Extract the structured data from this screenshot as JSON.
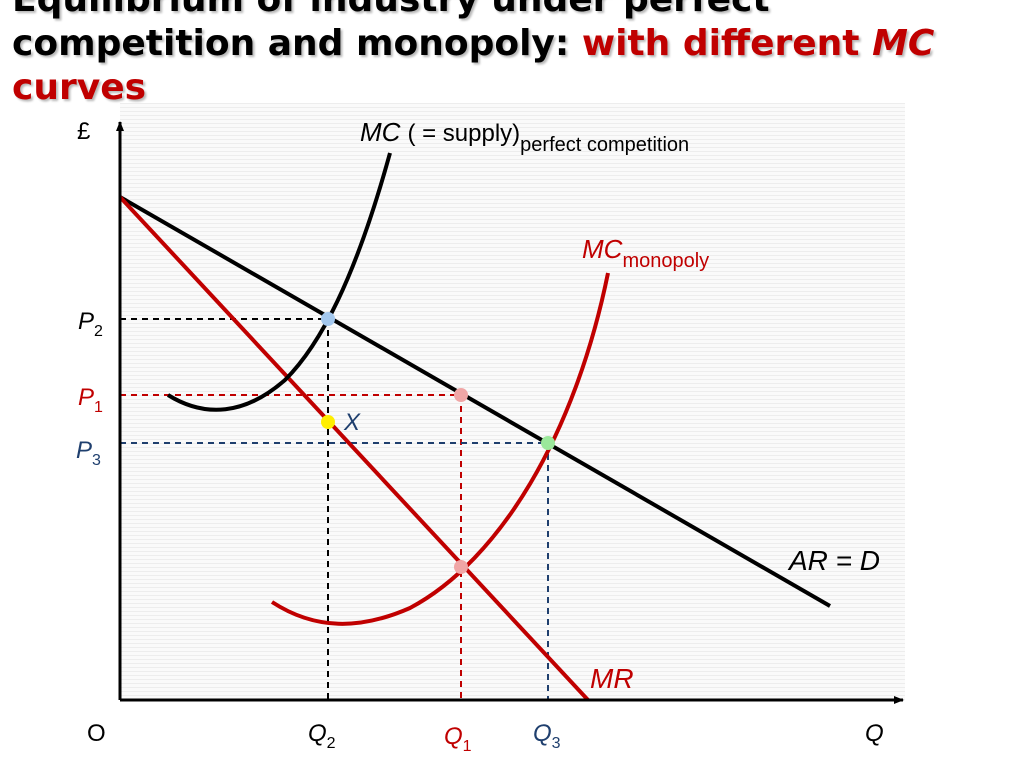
{
  "title": {
    "main": "Equilibrium of  industry under perfect competition and monopoly:",
    "highlight_prefix": "with different",
    "highlight_mc": "MC",
    "highlight_suffix": "curves"
  },
  "axes": {
    "y_label": "£",
    "origin_label": "O",
    "x_label": "Q"
  },
  "curves": {
    "mc_pc": {
      "main": "MC",
      "supply": "( = supply)",
      "sub": "perfect competition",
      "color": "#000000"
    },
    "mc_monopoly": {
      "main": "MC",
      "sub": "monopoly",
      "color": "#c00000"
    },
    "ar_d": {
      "label": "AR = D",
      "color": "#000000"
    },
    "mr": {
      "label": "MR",
      "color": "#c00000"
    }
  },
  "prices": [
    {
      "main": "P",
      "sub": "2",
      "color": "#000000"
    },
    {
      "main": "P",
      "sub": "1",
      "color": "#c00000"
    },
    {
      "main": "P",
      "sub": "3",
      "color": "#1f3f6e"
    }
  ],
  "quantities": [
    {
      "main": "Q",
      "sub": "2",
      "color": "#000000"
    },
    {
      "main": "Q",
      "sub": "1",
      "color": "#c00000"
    },
    {
      "main": "Q",
      "sub": "3",
      "color": "#1f3f6e"
    }
  ],
  "point_x": {
    "label": "X",
    "color": "#1f3f6e"
  },
  "colors": {
    "black": "#000000",
    "red": "#c00000",
    "navy": "#1f3f6e",
    "dot_blue": "#a4c8ee",
    "dot_pink": "#f0a6a6",
    "dot_green": "#9be89b",
    "dot_yellow": "#ffee00"
  }
}
